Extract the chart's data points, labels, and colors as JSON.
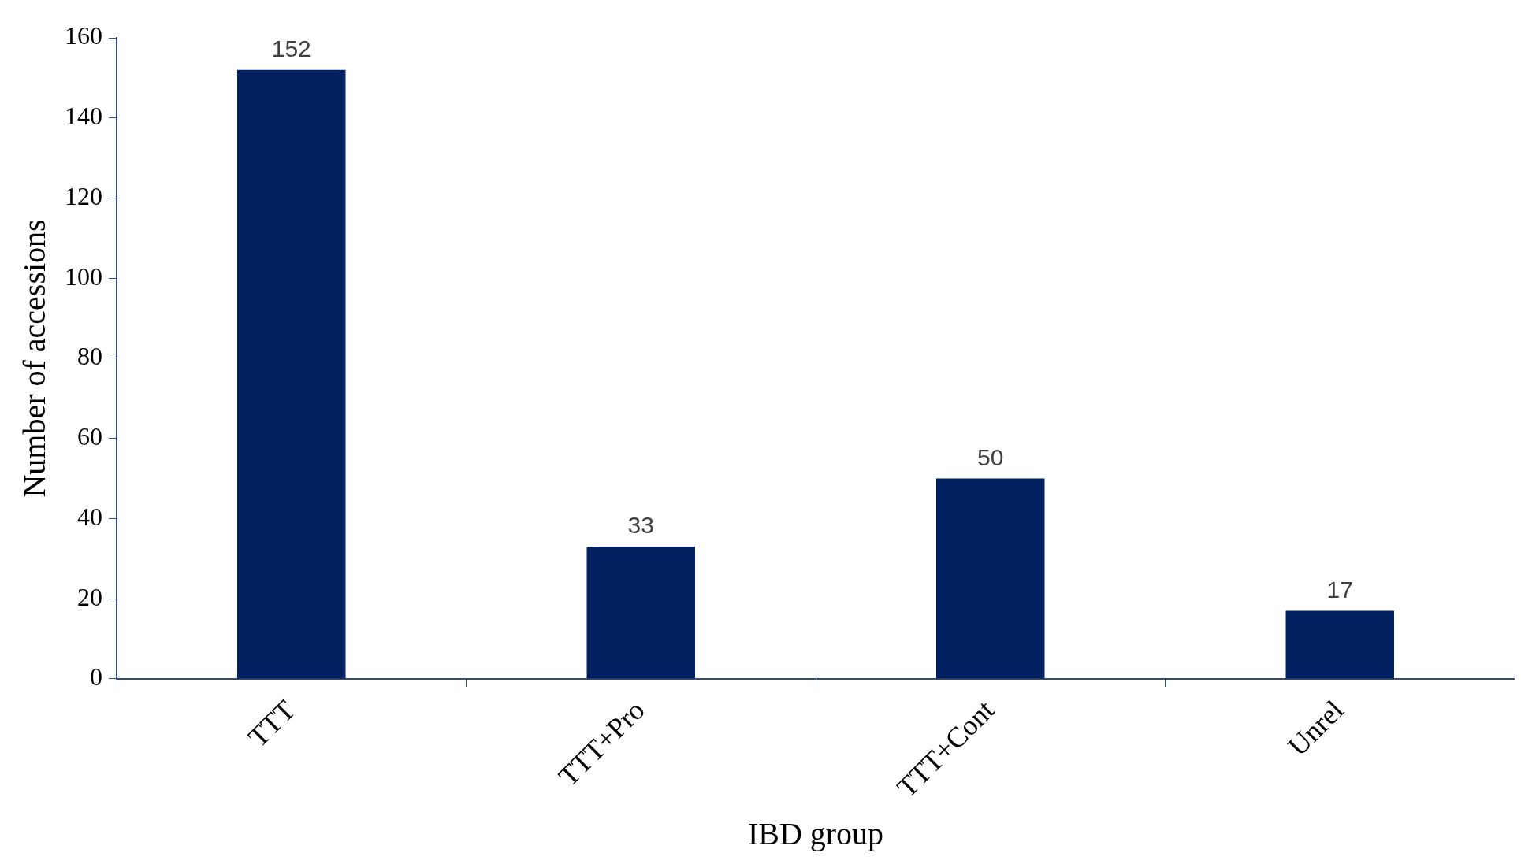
{
  "chart_data": {
    "type": "bar",
    "xlabel": "IBD group",
    "ylabel": "Number of accessions",
    "categories": [
      "TTT",
      "TTT+Pro",
      "TTT+Cont",
      "Unrel"
    ],
    "values": [
      152,
      33,
      50,
      17
    ],
    "color": "#002060",
    "ylim": [
      0,
      160
    ],
    "yticks": [
      0,
      20,
      40,
      60,
      80,
      100,
      120,
      140,
      160
    ],
    "grid": false,
    "data_labels": true,
    "legend": false
  }
}
